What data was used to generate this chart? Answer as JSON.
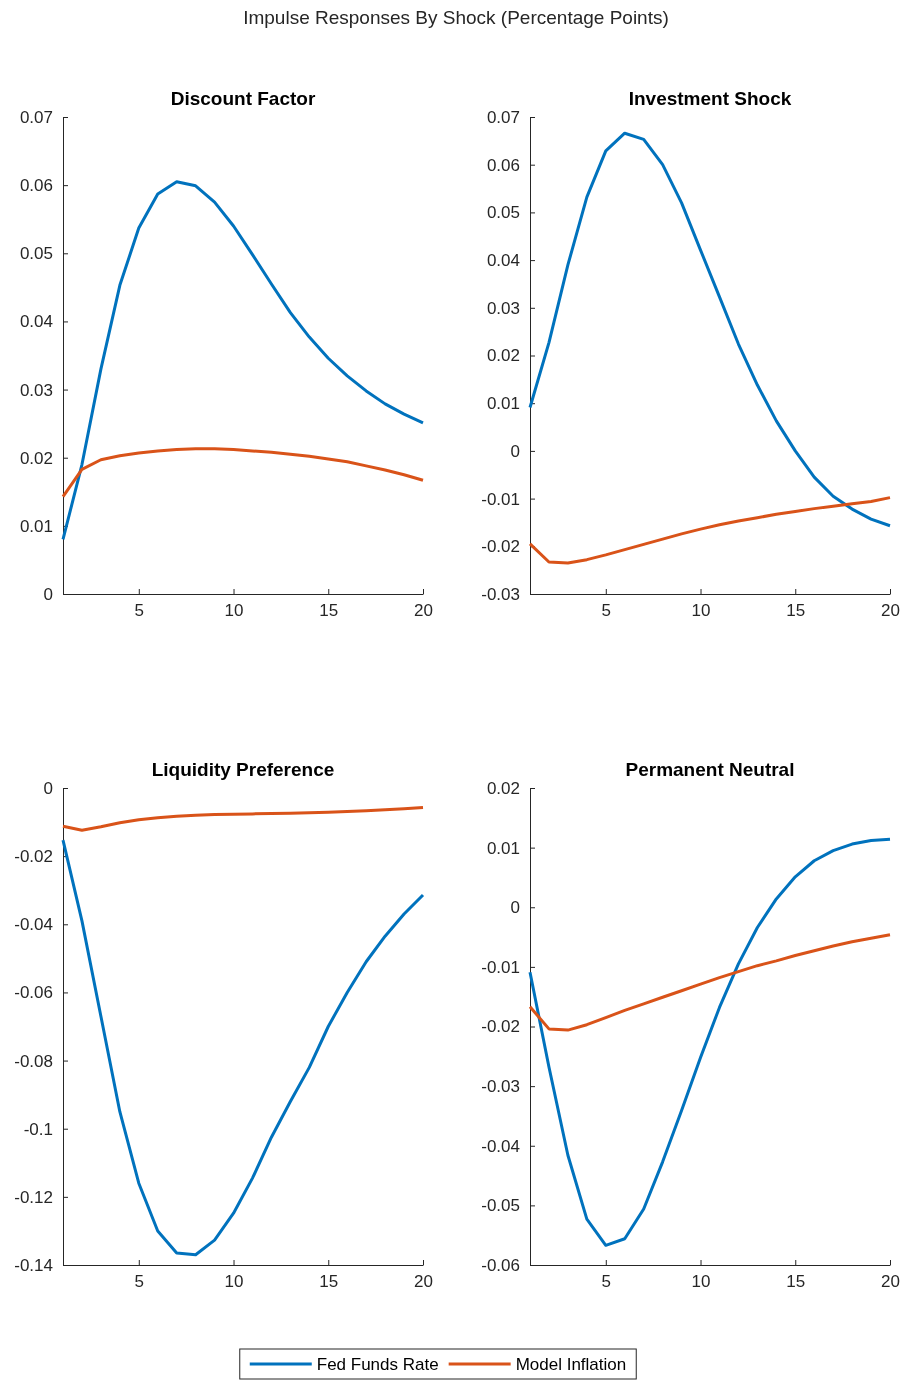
{
  "chart_data": [
    {
      "type": "line",
      "title": "Discount Factor",
      "annotations": [
        "Impulse Responses By Shock (Percentage Points)"
      ],
      "x": [
        1,
        2,
        3,
        4,
        5,
        6,
        7,
        8,
        9,
        10,
        11,
        12,
        13,
        14,
        15,
        16,
        17,
        18,
        19,
        20
      ],
      "xlim": [
        1,
        20
      ],
      "xticks": [
        5,
        10,
        15,
        20
      ],
      "ylim": [
        0,
        0.07
      ],
      "yticks": [
        0,
        0.01,
        0.02,
        0.03,
        0.04,
        0.05,
        0.06,
        0.07
      ],
      "grid": false,
      "marker": "none",
      "line_style": "solid",
      "legend": "bottom",
      "series": [
        {
          "name": "Fed Funds Rate",
          "color": "#0072bd",
          "values": [
            0.008,
            0.019,
            0.033,
            0.0453,
            0.0537,
            0.0587,
            0.0605,
            0.0599,
            0.0575,
            0.054,
            0.0498,
            0.0455,
            0.0413,
            0.0377,
            0.0346,
            0.032,
            0.0298,
            0.0279,
            0.0264,
            0.0251
          ]
        },
        {
          "name": "Model Inflation",
          "color": "#d95319",
          "values": [
            0.0143,
            0.0183,
            0.0197,
            0.0203,
            0.0207,
            0.021,
            0.0212,
            0.0213,
            0.0213,
            0.0212,
            0.021,
            0.0208,
            0.0205,
            0.0202,
            0.0198,
            0.0194,
            0.0188,
            0.0182,
            0.0175,
            0.0167
          ]
        }
      ]
    },
    {
      "type": "line",
      "title": "Investment Shock",
      "x": [
        1,
        2,
        3,
        4,
        5,
        6,
        7,
        8,
        9,
        10,
        11,
        12,
        13,
        14,
        15,
        16,
        17,
        18,
        19,
        20
      ],
      "xlim": [
        1,
        20
      ],
      "xticks": [
        5,
        10,
        15,
        20
      ],
      "ylim": [
        -0.03,
        0.07
      ],
      "yticks": [
        -0.03,
        -0.02,
        -0.01,
        0,
        0.01,
        0.02,
        0.03,
        0.04,
        0.05,
        0.06,
        0.07
      ],
      "grid": false,
      "marker": "none",
      "line_style": "solid",
      "series": [
        {
          "color": "#0072bd",
          "values": [
            0.0091,
            0.0227,
            0.039,
            0.0532,
            0.0629,
            0.0666,
            0.0653,
            0.06,
            0.052,
            0.0421,
            0.0323,
            0.0224,
            0.0138,
            0.0063,
            0.0,
            -0.0055,
            -0.0095,
            -0.0122,
            -0.0143,
            -0.0157
          ]
        },
        {
          "color": "#d95319",
          "values": [
            -0.0195,
            -0.0233,
            -0.0235,
            -0.0228,
            -0.0218,
            -0.0207,
            -0.0196,
            -0.0185,
            -0.0174,
            -0.0164,
            -0.0155,
            -0.0147,
            -0.014,
            -0.0133,
            -0.0127,
            -0.0121,
            -0.0116,
            -0.0111,
            -0.0106,
            -0.0098
          ]
        }
      ]
    },
    {
      "type": "line",
      "title": "Liquidity Preference",
      "x": [
        1,
        2,
        3,
        4,
        5,
        6,
        7,
        8,
        9,
        10,
        11,
        12,
        13,
        14,
        15,
        16,
        17,
        18,
        19,
        20
      ],
      "xlim": [
        1,
        20
      ],
      "xticks": [
        5,
        10,
        15,
        20
      ],
      "ylim": [
        -0.14,
        0
      ],
      "yticks": [
        -0.14,
        -0.12,
        -0.1,
        -0.08,
        -0.06,
        -0.04,
        -0.02,
        0
      ],
      "grid": false,
      "marker": "none",
      "line_style": "solid",
      "series": [
        {
          "color": "#0072bd",
          "values": [
            -0.0153,
            -0.039,
            -0.067,
            -0.095,
            -0.116,
            -0.13,
            -0.1365,
            -0.137,
            -0.1327,
            -0.1248,
            -0.1145,
            -0.1025,
            -0.092,
            -0.082,
            -0.07,
            -0.06,
            -0.051,
            -0.0435,
            -0.037,
            -0.0314
          ]
        },
        {
          "color": "#d95319",
          "values": [
            -0.0112,
            -0.0124,
            -0.0114,
            -0.0102,
            -0.0093,
            -0.0087,
            -0.0083,
            -0.008,
            -0.0078,
            -0.0077,
            -0.0076,
            -0.0075,
            -0.0074,
            -0.0073,
            -0.0071,
            -0.0069,
            -0.0067,
            -0.0064,
            -0.0061,
            -0.0057
          ]
        }
      ]
    },
    {
      "type": "line",
      "title": "Permanent Neutral",
      "x": [
        1,
        2,
        3,
        4,
        5,
        6,
        7,
        8,
        9,
        10,
        11,
        12,
        13,
        14,
        15,
        16,
        17,
        18,
        19,
        20
      ],
      "xlim": [
        1,
        20
      ],
      "xticks": [
        5,
        10,
        15,
        20
      ],
      "ylim": [
        -0.06,
        0.02
      ],
      "yticks": [
        -0.06,
        -0.05,
        -0.04,
        -0.03,
        -0.02,
        -0.01,
        0,
        0.01,
        0.02
      ],
      "grid": false,
      "marker": "none",
      "line_style": "solid",
      "series": [
        {
          "color": "#0072bd",
          "values": [
            -0.0109,
            -0.0268,
            -0.0416,
            -0.0523,
            -0.0567,
            -0.0556,
            -0.0506,
            -0.0427,
            -0.0341,
            -0.0252,
            -0.0168,
            -0.0095,
            -0.0034,
            0.0014,
            0.0051,
            0.0078,
            0.0095,
            0.0106,
            0.0112,
            0.0114
          ]
        },
        {
          "color": "#d95319",
          "values": [
            -0.0167,
            -0.0204,
            -0.0206,
            -0.0197,
            -0.0185,
            -0.0173,
            -0.0162,
            -0.0151,
            -0.014,
            -0.0129,
            -0.0118,
            -0.0108,
            -0.0098,
            -0.009,
            -0.0081,
            -0.0073,
            -0.0065,
            -0.0058,
            -0.0052,
            -0.0046
          ]
        }
      ]
    }
  ]
}
